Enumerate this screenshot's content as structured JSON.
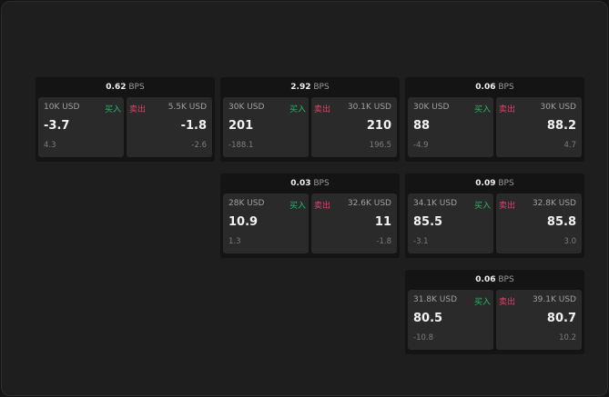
{
  "buy_label": "买入",
  "sell_label": "卖出",
  "bps_unit": "BPS",
  "colors": {
    "buy": "#2fb36a",
    "sell": "#e0406a",
    "background": "#1e1e1e"
  },
  "columns": [
    {
      "cards": [
        {
          "bps": "0.62",
          "buy": {
            "qty": "10K USD",
            "price": "-3.7",
            "change": "4.3"
          },
          "sell": {
            "qty": "5.5K USD",
            "price": "-1.8",
            "change": "-2.6"
          }
        }
      ]
    },
    {
      "cards": [
        {
          "bps": "2.92",
          "buy": {
            "qty": "30K USD",
            "price": "201",
            "change": "-188.1"
          },
          "sell": {
            "qty": "30.1K USD",
            "price": "210",
            "change": "196.5"
          }
        },
        {
          "bps": "0.03",
          "buy": {
            "qty": "28K USD",
            "price": "10.9",
            "change": "1.3"
          },
          "sell": {
            "qty": "32.6K USD",
            "price": "11",
            "change": "-1.8"
          }
        }
      ]
    },
    {
      "cards": [
        {
          "bps": "0.06",
          "buy": {
            "qty": "30K USD",
            "price": "88",
            "change": "-4.9"
          },
          "sell": {
            "qty": "30K USD",
            "price": "88.2",
            "change": "4.7"
          }
        },
        {
          "bps": "0.09",
          "buy": {
            "qty": "34.1K USD",
            "price": "85.5",
            "change": "-3.1"
          },
          "sell": {
            "qty": "32.8K USD",
            "price": "85.8",
            "change": "3.0"
          }
        },
        {
          "bps": "0.06",
          "buy": {
            "qty": "31.8K USD",
            "price": "80.5",
            "change": "-10.8"
          },
          "sell": {
            "qty": "39.1K USD",
            "price": "80.7",
            "change": "10.2"
          }
        }
      ]
    }
  ]
}
